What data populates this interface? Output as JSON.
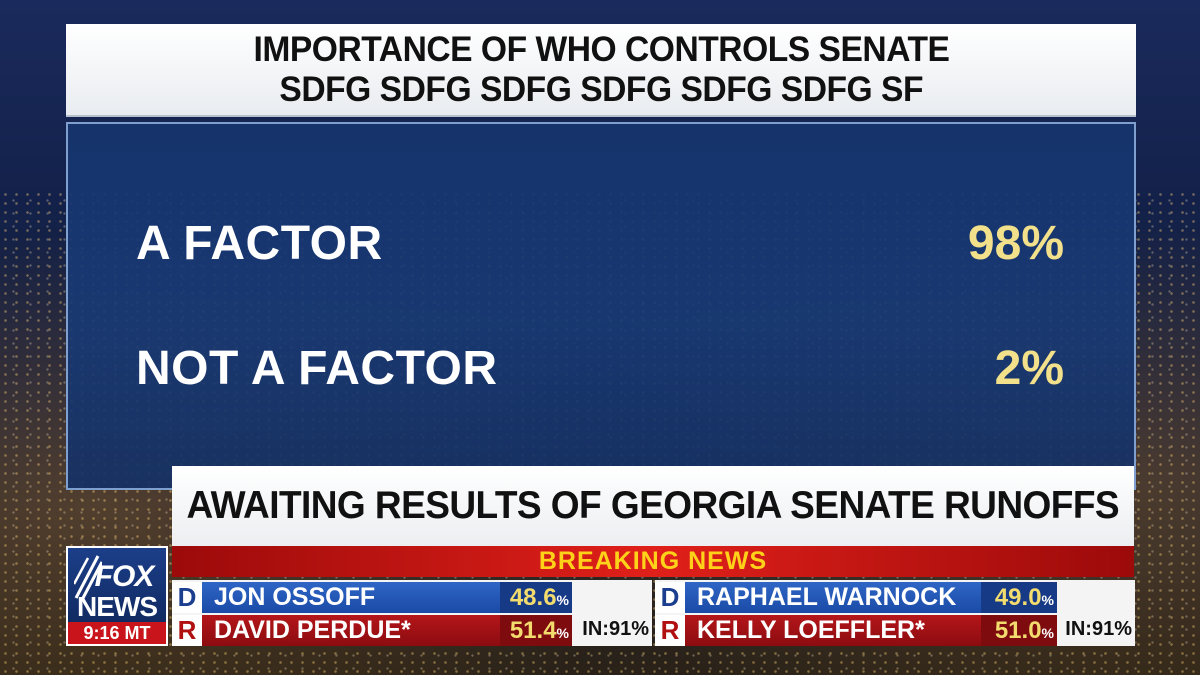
{
  "title": {
    "line1": "IMPORTANCE OF WHO CONTROLS SENATE",
    "line2": "SDFG SDFG SDFG SDFG SDFG SDFG SF"
  },
  "results": [
    {
      "label": "A FACTOR",
      "value": "98%"
    },
    {
      "label": "NOT A FACTOR",
      "value": "2%"
    }
  ],
  "headline": "AWAITING RESULTS OF GEORGIA SENATE RUNOFFS",
  "breaking": "BREAKING NEWS",
  "logo": {
    "line1": "FOX",
    "line2": "NEWS",
    "time": "9:16 MT"
  },
  "races": [
    {
      "candidates": [
        {
          "party": "D",
          "name": "JON OSSOFF",
          "pct": "48.6"
        },
        {
          "party": "R",
          "name": "DAVID PERDUE*",
          "pct": "51.4"
        }
      ],
      "precincts": "IN:91%"
    },
    {
      "candidates": [
        {
          "party": "D",
          "name": "RAPHAEL WARNOCK",
          "pct": "49.0"
        },
        {
          "party": "R",
          "name": "KELLY LOEFFLER*",
          "pct": "51.0"
        }
      ],
      "precincts": "IN:91%"
    }
  ],
  "pct_symbol": "%",
  "colors": {
    "panel": "#1a3c7a",
    "accent_yellow": "#f2e08a",
    "breaking_red": "#e0201a",
    "breaking_text": "#ffd21a",
    "dem_blue": "#1a4aa6",
    "rep_red": "#8c0c10"
  }
}
